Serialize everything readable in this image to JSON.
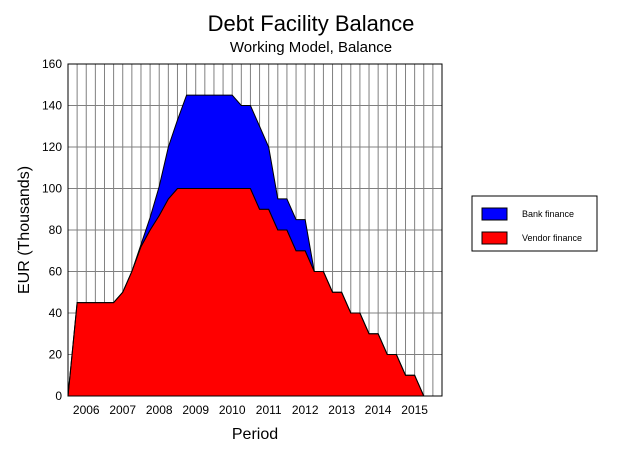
{
  "chart_data": {
    "type": "area",
    "stacked": true,
    "title": "Debt Facility Balance",
    "subtitle": "Working Model, Balance",
    "xlabel": "Period",
    "ylabel": "EUR (Thousands)",
    "ylim": [
      0,
      160
    ],
    "yticks": [
      "0",
      "20",
      "40",
      "60",
      "80",
      "100",
      "120",
      "140",
      "160"
    ],
    "xlim": [
      2005.5,
      2015.75
    ],
    "year_labels": [
      "2006",
      "2007",
      "2008",
      "2009",
      "2010",
      "2011",
      "2012",
      "2013",
      "2014",
      "2015"
    ],
    "grid": true,
    "legend_position": "right",
    "x": [
      2005.5,
      2005.75,
      2006,
      2006.25,
      2006.5,
      2006.75,
      2007,
      2007.25,
      2007.5,
      2007.75,
      2008,
      2008.25,
      2008.5,
      2008.75,
      2009,
      2009.25,
      2009.5,
      2009.75,
      2010,
      2010.25,
      2010.5,
      2010.75,
      2011,
      2011.25,
      2011.5,
      2011.75,
      2012,
      2012.25,
      2012.5,
      2012.75,
      2013,
      2013.25,
      2013.5,
      2013.75,
      2014,
      2014.25,
      2014.5,
      2014.75,
      2015,
      2015.25,
      2015.5,
      2015.75
    ],
    "series": [
      {
        "name": "Vendor finance",
        "color": "#ff0000",
        "values": [
          0,
          45,
          45,
          45,
          45,
          45,
          50,
          60,
          72,
          80,
          87,
          95,
          100,
          100,
          100,
          100,
          100,
          100,
          100,
          100,
          100,
          90,
          90,
          80,
          80,
          70,
          70,
          60,
          60,
          50,
          50,
          40,
          40,
          30,
          30,
          20,
          20,
          10,
          10,
          0,
          0,
          0
        ]
      },
      {
        "name": "Bank finance",
        "color": "#0000ff",
        "values": [
          0,
          0,
          0,
          0,
          0,
          0,
          0,
          0,
          1,
          6,
          14,
          25,
          33,
          45,
          45,
          45,
          45,
          45,
          45,
          40,
          40,
          40,
          30,
          15,
          15,
          15,
          15,
          0,
          0,
          0,
          0,
          0,
          0,
          0,
          0,
          0,
          0,
          0,
          0,
          0,
          0,
          0
        ]
      }
    ],
    "legend": [
      {
        "name": "Bank finance",
        "color": "#0000ff"
      },
      {
        "name": "Vendor finance",
        "color": "#ff0000"
      }
    ]
  }
}
